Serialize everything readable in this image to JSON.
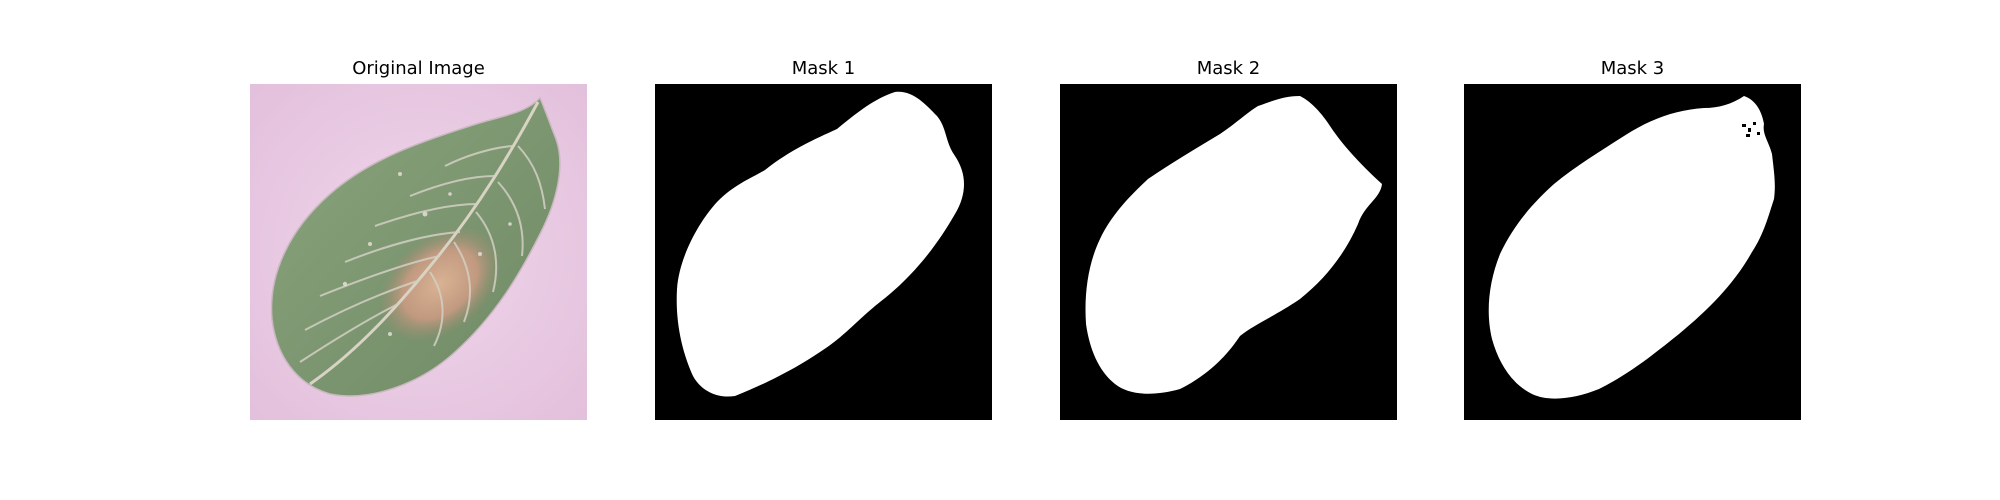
{
  "figure": {
    "panels": [
      {
        "title": "Original Image",
        "kind": "photo",
        "subject": "leaf-photo"
      },
      {
        "title": "Mask 1",
        "kind": "mask"
      },
      {
        "title": "Mask 2",
        "kind": "mask"
      },
      {
        "title": "Mask 3",
        "kind": "mask"
      }
    ]
  },
  "colors": {
    "background": "#ffffff",
    "mask_background": "#000000",
    "mask_foreground": "#ffffff",
    "photo_background": "#e8c9e3",
    "leaf_green": "#7f9a72",
    "leaf_dark": "#5f7a56",
    "leaf_vein": "#d6d2c8",
    "lesion": "#d9a58b"
  }
}
